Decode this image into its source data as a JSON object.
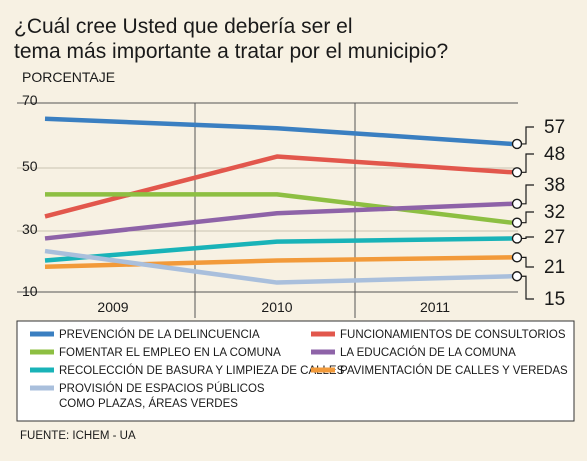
{
  "chart_data": {
    "type": "line",
    "title_lines": [
      "¿Cuál cree Usted que debería ser el",
      "tema más importante a tratar por el municipio?"
    ],
    "ylabel": "PORCENTAJE",
    "x": [
      "2009",
      "2010",
      "2011"
    ],
    "ylim": [
      10,
      70
    ],
    "yticks": [
      "70",
      "50",
      "30",
      "10"
    ],
    "grid": false,
    "series": [
      {
        "name": "PREVENCIÓN DE LA DELINCUENCIA",
        "color": "#3a7fc1",
        "values": [
          65,
          62,
          57
        ],
        "end_label": "57"
      },
      {
        "name": "FUNCIONAMIENTOS DE CONSULTORIOS",
        "color": "#e2574c",
        "values": [
          34,
          53,
          48
        ],
        "end_label": "48"
      },
      {
        "name": "FOMENTAR EL EMPLEO EN LA COMUNA",
        "color": "#8dbf42",
        "values": [
          41,
          41,
          32
        ],
        "end_label": "32"
      },
      {
        "name": "LA EDUCACIÓN DE LA COMUNA",
        "color": "#8e63a8",
        "values": [
          27,
          35,
          38
        ],
        "end_label": "38"
      },
      {
        "name": "RECOLECCIÓN DE BASURA Y LIMPIEZA DE CALLES",
        "color": "#19b3b8",
        "values": [
          20,
          26,
          27
        ],
        "end_label": "27"
      },
      {
        "name": "PAVIMENTACIÓN DE CALLES Y VEREDAS",
        "color": "#f29a3a",
        "values": [
          18,
          20,
          21
        ],
        "end_label": "21"
      },
      {
        "name_lines": [
          "PROVISIÓN DE ESPACIOS PÚBLICOS",
          "COMO PLAZAS, ÁREAS VERDES"
        ],
        "color": "#a9bfdc",
        "values": [
          23,
          13,
          15
        ],
        "end_label": "15"
      }
    ],
    "source": "FUENTE: ICHEM - UA"
  }
}
